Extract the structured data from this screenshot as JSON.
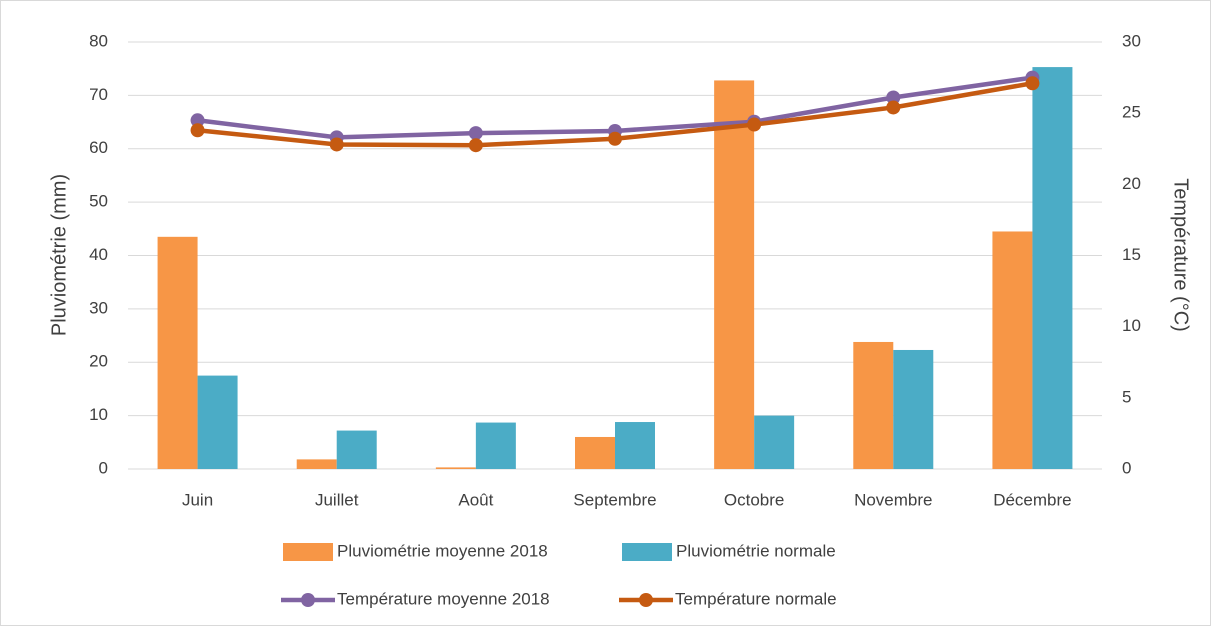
{
  "chart_data": {
    "type": "bar",
    "categories": [
      "Juin",
      "Juillet",
      "Août",
      "Septembre",
      "Octobre",
      "Novembre",
      "Décembre"
    ],
    "series": [
      {
        "name": "Pluviométrie moyenne 2018",
        "type": "bar",
        "color": "#f79646",
        "values": [
          43.5,
          1.8,
          0.3,
          6,
          72.8,
          23.8,
          44.5
        ]
      },
      {
        "name": "Pluviométrie normale",
        "type": "bar",
        "color": "#4bacc6",
        "values": [
          17.5,
          7.2,
          8.7,
          8.8,
          10,
          22.3,
          75.3
        ]
      },
      {
        "name": "Température moyenne 2018",
        "type": "line",
        "axis": "y2",
        "color": "#8064a2",
        "values": [
          24.5,
          23.3,
          23.6,
          23.75,
          24.4,
          26.1,
          27.5
        ]
      },
      {
        "name": "Température normale",
        "type": "line",
        "axis": "y2",
        "color": "#c55a11",
        "values": [
          23.8,
          22.8,
          22.75,
          23.2,
          24.2,
          25.4,
          27.1
        ]
      }
    ],
    "ylabel": "Pluviométrie (mm)",
    "y2label": "Température (°C)",
    "ylim": [
      0,
      80
    ],
    "yticks": [
      0,
      10,
      20,
      30,
      40,
      50,
      60,
      70,
      80
    ],
    "y2lim": [
      0,
      30
    ],
    "y2ticks": [
      0,
      5,
      10,
      15,
      20,
      25,
      30
    ],
    "grid": true,
    "legend": "bottom"
  }
}
